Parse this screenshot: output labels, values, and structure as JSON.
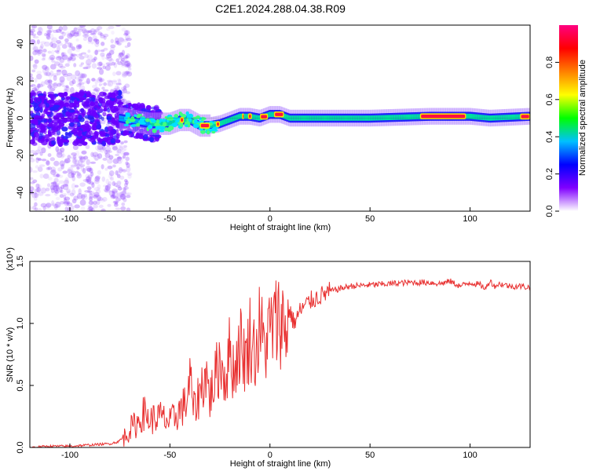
{
  "figure_title": "C2E1.2024.288.04.38.R09",
  "chart_data": [
    {
      "type": "heatmap",
      "xlabel": "Height of straight line (km)",
      "ylabel": "Frequency (Hz)",
      "xlim": [
        -120,
        130
      ],
      "ylim": [
        -50,
        50
      ],
      "xticks": [
        -100,
        -50,
        0,
        50,
        100
      ],
      "yticks": [
        -40,
        -20,
        0,
        20,
        40
      ],
      "colorbar": {
        "label": "Normalized spectral amplitude",
        "range": [
          0,
          1
        ],
        "ticks": [
          "0.0",
          "0.2",
          "0.4",
          "0.6",
          "0.8"
        ],
        "colors": [
          "#ffffff",
          "#8000ff",
          "#0000ff",
          "#00c0ff",
          "#00ff00",
          "#ffff00",
          "#ff8000",
          "#ff0000",
          "#ff0080"
        ]
      },
      "ridge": {
        "x": [
          -75,
          -60,
          -50,
          -45,
          -40,
          -35,
          -30,
          -25,
          -20,
          -15,
          -10,
          -5,
          0,
          5,
          10,
          20,
          50,
          80,
          100,
          110,
          130
        ],
        "frequency": [
          0,
          -3,
          -3,
          -1,
          -1,
          -4,
          -4,
          -3,
          -1,
          1,
          1,
          0,
          2,
          2,
          0,
          0,
          0,
          1,
          1,
          0,
          1
        ]
      }
    },
    {
      "type": "line",
      "xlabel": "Height of straight line (km)",
      "ylabel": "SNR (10 * v/v)",
      "y_multiplier": "(x10⁴)",
      "xlim": [
        -120,
        130
      ],
      "ylim": [
        0,
        1.5
      ],
      "xticks": [
        -100,
        -50,
        0,
        50,
        100
      ],
      "yticks": [
        "0.0",
        "0.5",
        "1.0",
        "1.5"
      ],
      "color": "#e83030",
      "series": [
        {
          "x": [
            -120,
            -110,
            -100,
            -90,
            -80,
            -75,
            -72,
            -70,
            -66,
            -63,
            -60,
            -55,
            -50,
            -45,
            -42,
            -40,
            -38,
            -35,
            -32,
            -30,
            -25,
            -22,
            -20,
            -18,
            -15,
            -12,
            -10,
            -7,
            -5,
            -3,
            0,
            3,
            5,
            8,
            10,
            12,
            15,
            20,
            25,
            30,
            35,
            40,
            50,
            60,
            70,
            80,
            85,
            90,
            95,
            100,
            105,
            108,
            110,
            112,
            115,
            120,
            125,
            130
          ],
          "y": [
            0.0,
            0.01,
            0.01,
            0.02,
            0.03,
            0.05,
            0.1,
            0.15,
            0.2,
            0.28,
            0.22,
            0.25,
            0.2,
            0.3,
            0.35,
            0.55,
            0.3,
            0.45,
            0.6,
            0.4,
            0.7,
            0.55,
            0.8,
            0.6,
            0.85,
            0.7,
            0.9,
            0.75,
            1.0,
            0.8,
            0.95,
            1.0,
            1.05,
            0.95,
            1.1,
            1.0,
            1.1,
            1.18,
            1.22,
            1.26,
            1.28,
            1.3,
            1.31,
            1.32,
            1.33,
            1.33,
            1.32,
            1.34,
            1.3,
            1.33,
            1.31,
            1.28,
            1.35,
            1.3,
            1.32,
            1.3,
            1.3,
            1.29
          ]
        }
      ]
    }
  ]
}
